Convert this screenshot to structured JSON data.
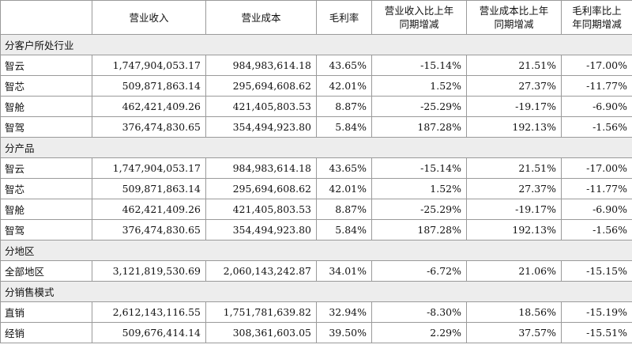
{
  "headers": [
    {
      "lines": [
        ""
      ]
    },
    {
      "lines": [
        "营业收入"
      ]
    },
    {
      "lines": [
        "营业成本"
      ]
    },
    {
      "lines": [
        "毛利率"
      ]
    },
    {
      "lines": [
        "营业收入比上年",
        "同期增减"
      ]
    },
    {
      "lines": [
        "营业成本比上年",
        "同期增减"
      ]
    },
    {
      "lines": [
        "毛利率比上",
        "年同期增减"
      ]
    }
  ],
  "sections": [
    {
      "title": "分客户所处行业",
      "rows": [
        [
          "智云",
          "1,747,904,053.17",
          "984,983,614.18",
          "43.65%",
          "-15.14%",
          "21.51%",
          "-17.00%"
        ],
        [
          "智芯",
          "509,871,863.14",
          "295,694,608.62",
          "42.01%",
          "1.52%",
          "27.37%",
          "-11.77%"
        ],
        [
          "智舱",
          "462,421,409.26",
          "421,405,803.53",
          "8.87%",
          "-25.29%",
          "-19.17%",
          "-6.90%"
        ],
        [
          "智驾",
          "376,474,830.65",
          "354,494,923.80",
          "5.84%",
          "187.28%",
          "192.13%",
          "-1.56%"
        ]
      ]
    },
    {
      "title": "分产品",
      "rows": [
        [
          "智云",
          "1,747,904,053.17",
          "984,983,614.18",
          "43.65%",
          "-15.14%",
          "21.51%",
          "-17.00%"
        ],
        [
          "智芯",
          "509,871,863.14",
          "295,694,608.62",
          "42.01%",
          "1.52%",
          "27.37%",
          "-11.77%"
        ],
        [
          "智舱",
          "462,421,409.26",
          "421,405,803.53",
          "8.87%",
          "-25.29%",
          "-19.17%",
          "-6.90%"
        ],
        [
          "智驾",
          "376,474,830.65",
          "354,494,923.80",
          "5.84%",
          "187.28%",
          "192.13%",
          "-1.56%"
        ]
      ]
    },
    {
      "title": "分地区",
      "rows": [
        [
          "全部地区",
          "3,121,819,530.69",
          "2,060,143,242.87",
          "34.01%",
          "-6.72%",
          "21.06%",
          "-15.15%"
        ]
      ]
    },
    {
      "title": "分销售模式",
      "rows": [
        [
          "直销",
          "2,612,143,116.55",
          "1,751,781,639.82",
          "32.94%",
          "-8.30%",
          "18.56%",
          "-15.19%"
        ],
        [
          "经销",
          "509,676,414.14",
          "308,361,603.05",
          "39.50%",
          "2.29%",
          "37.57%",
          "-15.51%"
        ]
      ]
    }
  ]
}
